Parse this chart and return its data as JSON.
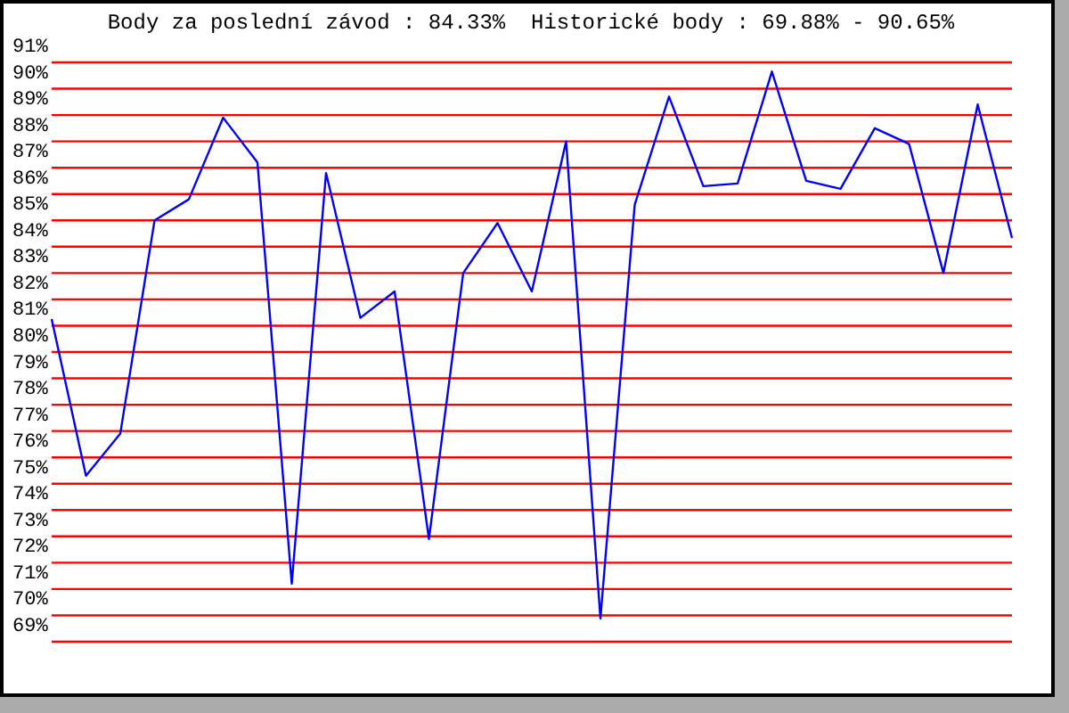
{
  "chart_data": {
    "type": "line",
    "title": "Body za poslední závod : 84.33%  Historické body : 69.88% - 90.65%",
    "categories": [
      null,
      null,
      null,
      null,
      null,
      null,
      null,
      null,
      null,
      null,
      null,
      null,
      null,
      null,
      null,
      null,
      null,
      null,
      null,
      null,
      null,
      null,
      null,
      null,
      null,
      null,
      null,
      null,
      null
    ],
    "series": [
      {
        "color": "#0000ff",
        "values": [
          81.25,
          75.3,
          76.9,
          85.0,
          85.8,
          88.9,
          87.2,
          71.2,
          86.8,
          81.3,
          82.3,
          72.9,
          83.0,
          84.9,
          82.3,
          88.0,
          69.88,
          85.6,
          89.7,
          86.3,
          86.4,
          90.65,
          86.5,
          86.2,
          88.5,
          87.9,
          83.0,
          89.4,
          84.33
        ]
      }
    ],
    "ylim": [
      69,
      91
    ],
    "yticks": [
      {
        "value": 69,
        "label": "69%"
      },
      {
        "value": 70,
        "label": "70%"
      },
      {
        "value": 71,
        "label": "71%"
      },
      {
        "value": 72,
        "label": "72%"
      },
      {
        "value": 73,
        "label": "73%"
      },
      {
        "value": 74,
        "label": "74%"
      },
      {
        "value": 75,
        "label": "75%"
      },
      {
        "value": 76,
        "label": "76%"
      },
      {
        "value": 77,
        "label": "77%"
      },
      {
        "value": 78,
        "label": "78%"
      },
      {
        "value": 79,
        "label": "79%"
      },
      {
        "value": 80,
        "label": "80%"
      },
      {
        "value": 81,
        "label": "81%"
      },
      {
        "value": 82,
        "label": "82%"
      },
      {
        "value": 83,
        "label": "83%"
      },
      {
        "value": 84,
        "label": "84%"
      },
      {
        "value": 85,
        "label": "85%"
      },
      {
        "value": 86,
        "label": "86%"
      },
      {
        "value": 87,
        "label": "87%"
      },
      {
        "value": 88,
        "label": "88%"
      },
      {
        "value": 89,
        "label": "89%"
      },
      {
        "value": 90,
        "label": "90%"
      },
      {
        "value": 91,
        "label": "91%"
      }
    ],
    "grid": "y",
    "marker": "none",
    "line_style": "solid",
    "legend": false
  }
}
